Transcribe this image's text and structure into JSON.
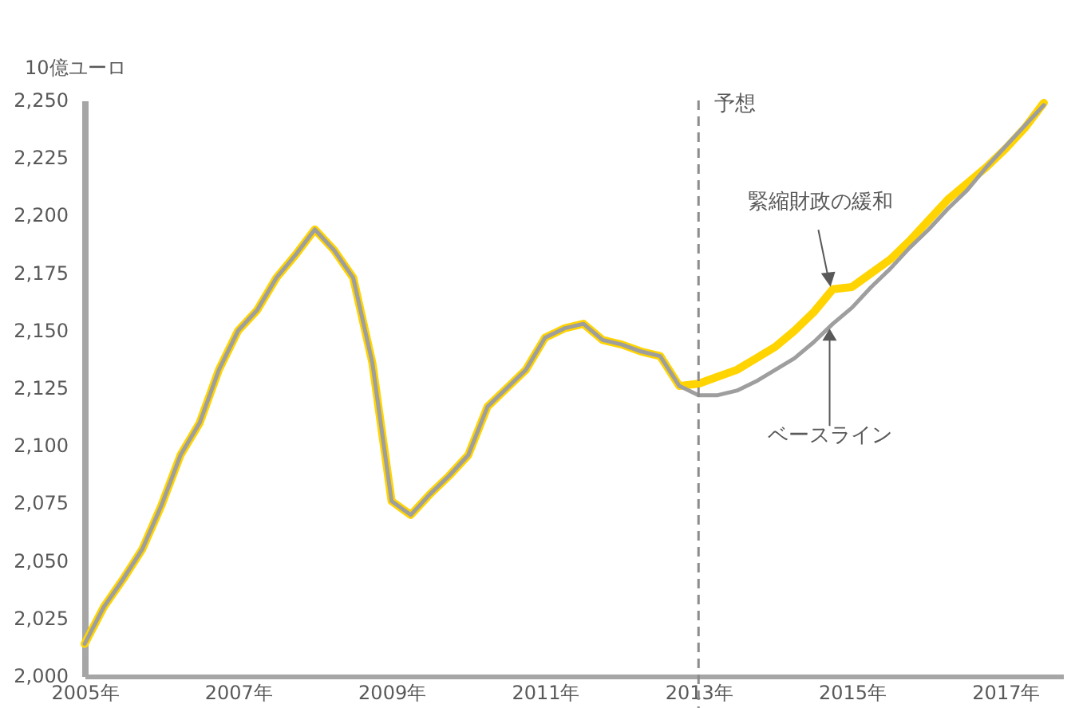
{
  "chart_data": {
    "type": "line",
    "ylabel": "10億ユーロ",
    "x": [
      2005,
      2005.25,
      2005.5,
      2005.75,
      2006,
      2006.25,
      2006.5,
      2006.75,
      2007,
      2007.25,
      2007.5,
      2007.75,
      2008,
      2008.25,
      2008.5,
      2008.75,
      2009,
      2009.25,
      2009.5,
      2009.75,
      2010,
      2010.25,
      2010.5,
      2010.75,
      2011,
      2011.25,
      2011.5,
      2011.75,
      2012,
      2012.25,
      2012.5,
      2012.75,
      2013,
      2013.25,
      2013.5,
      2013.75,
      2014,
      2014.25,
      2014.5,
      2014.75,
      2015,
      2015.25,
      2015.5,
      2015.75,
      2016,
      2016.25,
      2016.5,
      2016.75,
      2017,
      2017.25,
      2017.5
    ],
    "series": [
      {
        "name": "緊縮財政の緩和",
        "color": "#ffd400",
        "values": [
          2014,
          2030,
          2042,
          2055,
          2074,
          2096,
          2110,
          2133,
          2150,
          2159,
          2173,
          2183,
          2194,
          2185,
          2173,
          2136,
          2076,
          2070,
          2079,
          2087,
          2096,
          2117,
          2125,
          2133,
          2147,
          2151,
          2153,
          2146,
          2144,
          2141,
          2139,
          2126,
          2127,
          2130,
          2133,
          2138,
          2143,
          2150,
          2158,
          2168,
          2169,
          2175,
          2181,
          2189,
          2198,
          2207,
          2214,
          2221,
          2229,
          2238,
          2249
        ]
      },
      {
        "name": "ベースライン",
        "color": "#9e9e9e",
        "values": [
          2014,
          2030,
          2042,
          2055,
          2074,
          2096,
          2110,
          2133,
          2150,
          2159,
          2173,
          2183,
          2194,
          2185,
          2173,
          2136,
          2076,
          2070,
          2079,
          2087,
          2096,
          2117,
          2125,
          2133,
          2147,
          2151,
          2153,
          2146,
          2144,
          2141,
          2139,
          2126,
          2122,
          2122,
          2124,
          2128,
          2133,
          2138,
          2145,
          2153,
          2160,
          2169,
          2177,
          2186,
          2194,
          2203,
          2211,
          2221,
          2230,
          2239,
          2248
        ]
      }
    ],
    "xlim": [
      2005,
      2017.75
    ],
    "xticks": [
      {
        "value": 2005,
        "label": "2005年"
      },
      {
        "value": 2006,
        "label": null
      },
      {
        "value": 2007,
        "label": "2007年"
      },
      {
        "value": 2008,
        "label": null
      },
      {
        "value": 2009,
        "label": "2009年"
      },
      {
        "value": 2010,
        "label": null
      },
      {
        "value": 2011,
        "label": "2011年"
      },
      {
        "value": 2012,
        "label": null
      },
      {
        "value": 2013,
        "label": "2013年"
      },
      {
        "value": 2014,
        "label": null
      },
      {
        "value": 2015,
        "label": "2015年"
      },
      {
        "value": 2016,
        "label": null
      },
      {
        "value": 2017,
        "label": "2017年"
      }
    ],
    "ylim": [
      2000,
      2250
    ],
    "yticks": [
      {
        "value": 2000,
        "label": "2,000"
      },
      {
        "value": 2025,
        "label": "2,025"
      },
      {
        "value": 2050,
        "label": "2,050"
      },
      {
        "value": 2075,
        "label": "2,075"
      },
      {
        "value": 2100,
        "label": "2,100"
      },
      {
        "value": 2125,
        "label": "2,125"
      },
      {
        "value": 2150,
        "label": "2,150"
      },
      {
        "value": 2175,
        "label": "2,175"
      },
      {
        "value": 2200,
        "label": "2,200"
      },
      {
        "value": 2225,
        "label": "2,225"
      },
      {
        "value": 2250,
        "label": "2,250"
      }
    ],
    "ref_lines": [
      {
        "axis": "x",
        "value": 2013,
        "label": "予想",
        "color": "#8c8c8c",
        "line_style": "dashed"
      }
    ],
    "grid": false,
    "marker": "none",
    "line_style": "solid"
  }
}
